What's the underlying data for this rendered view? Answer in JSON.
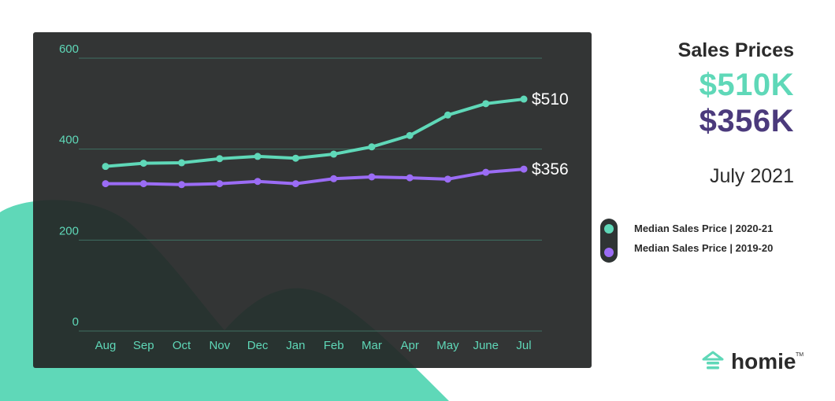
{
  "colors": {
    "series_a": "#5fd8b8",
    "series_b": "#9b6cf5",
    "panel": "#232626",
    "headline_b": "#4b3a7c",
    "text_dark": "#2b2b2b"
  },
  "header": {
    "title": "Sales Prices",
    "value_a": "$510K",
    "value_b": "$356K",
    "date": "July 2021"
  },
  "legend": {
    "items": [
      {
        "label": "Median Sales Price  |  2020-21",
        "color": "#5fd8b8"
      },
      {
        "label": "Median Sales Price  |  2019-20",
        "color": "#9b6cf5"
      }
    ]
  },
  "logo": {
    "text": "homie",
    "tm": "TM",
    "icon": "house-icon"
  },
  "chart_data": {
    "type": "line",
    "categories": [
      "Aug",
      "Sep",
      "Oct",
      "Nov",
      "Dec",
      "Jan",
      "Feb",
      "Mar",
      "Apr",
      "May",
      "June",
      "Jul"
    ],
    "series": [
      {
        "values": [
          362,
          369,
          370,
          379,
          384,
          380,
          389,
          405,
          430,
          475,
          500,
          510
        ],
        "color": "#5fd8b8",
        "end_label": "$510"
      },
      {
        "values": [
          324,
          324,
          322,
          324,
          329,
          324,
          335,
          339,
          337,
          334,
          349,
          356
        ],
        "color": "#9b6cf5",
        "end_label": "$356"
      }
    ],
    "yticks": [
      0,
      200,
      400,
      600
    ],
    "ylim": [
      0,
      600
    ],
    "grid": true,
    "xlabel": "",
    "ylabel": ""
  }
}
